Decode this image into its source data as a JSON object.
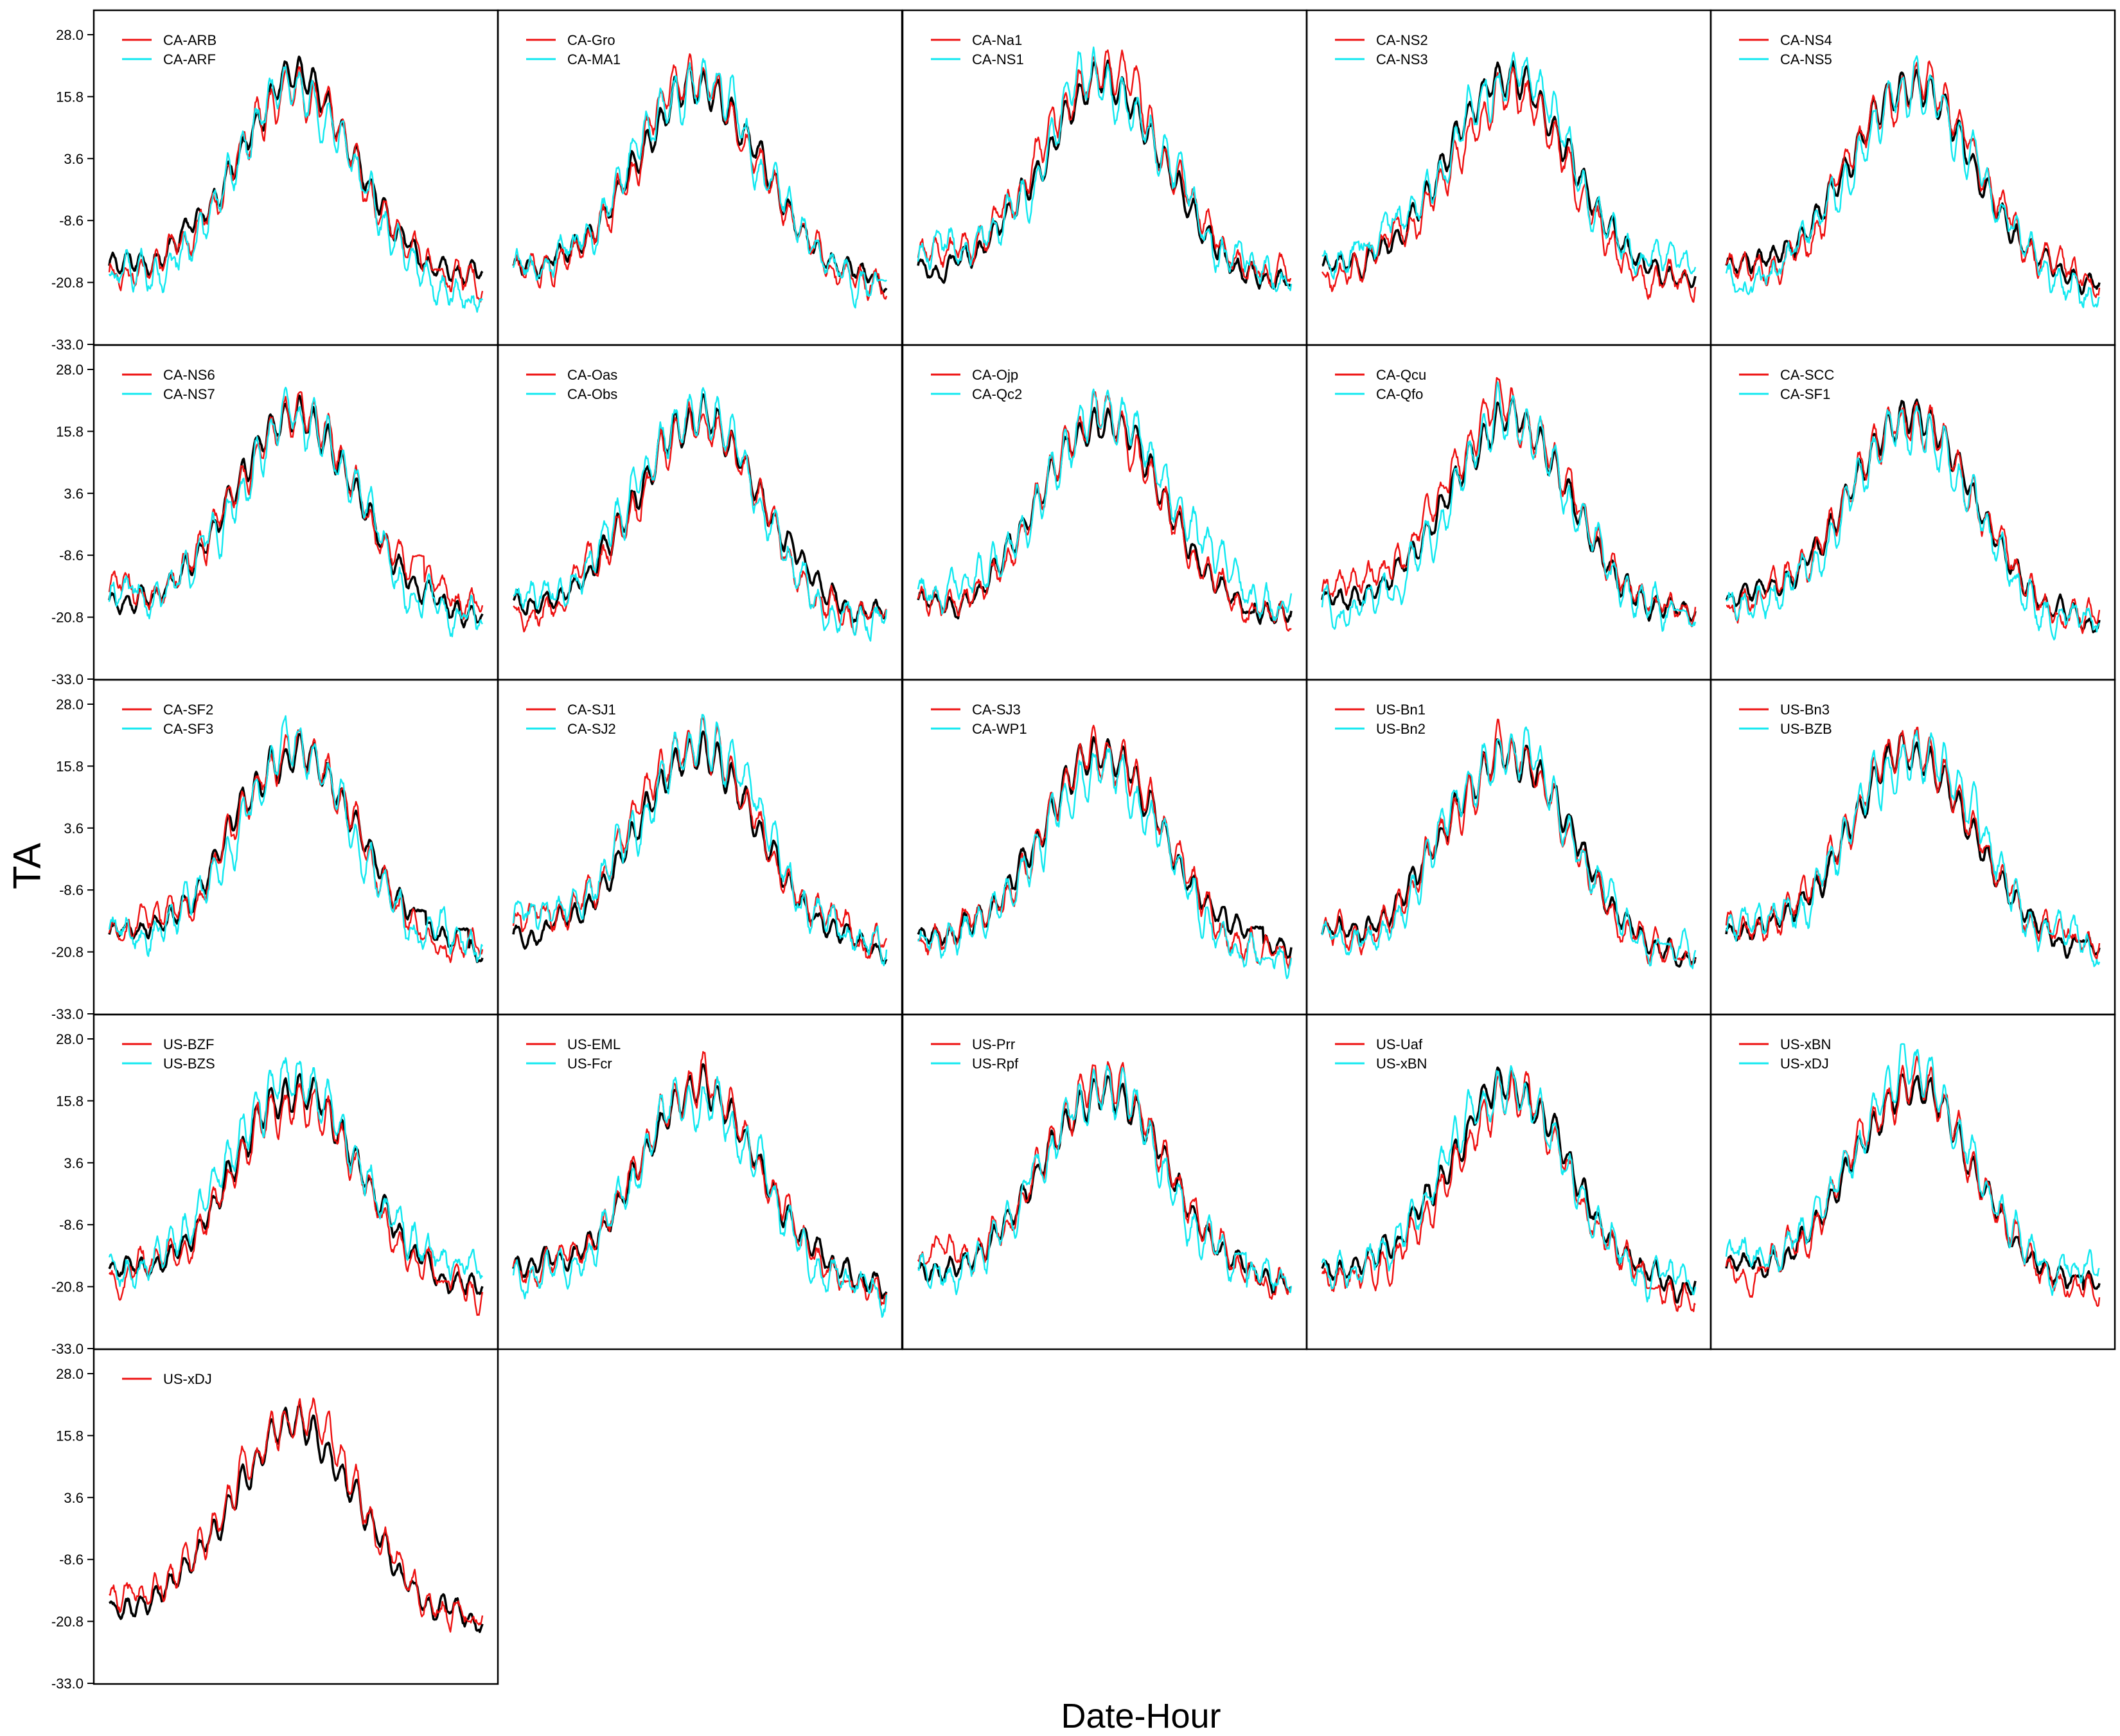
{
  "figure": {
    "xlabel": "Date-Hour",
    "ylabel": "TA"
  },
  "chart_data": {
    "type": "line",
    "grid_rows": 5,
    "grid_cols": 5,
    "y_ticks": [
      28.0,
      15.8,
      3.6,
      -8.6,
      -20.8,
      -33.0
    ],
    "y_tick_labels": [
      "28.0",
      "15.8",
      "3.6",
      "-8.6",
      "-20.8",
      "-33.0"
    ],
    "ylim": [
      -33.0,
      28.0
    ],
    "grid": false,
    "legend_position": "top-left",
    "colors": {
      "reference": "#000000",
      "first": "#ee1111",
      "second": "#11e8f0"
    },
    "panels": [
      {
        "legend": [
          "CA-ARB",
          "CA-ARF"
        ]
      },
      {
        "legend": [
          "CA-Gro",
          "CA-MA1"
        ]
      },
      {
        "legend": [
          "CA-Na1",
          "CA-NS1"
        ]
      },
      {
        "legend": [
          "CA-NS2",
          "CA-NS3"
        ]
      },
      {
        "legend": [
          "CA-NS4",
          "CA-NS5"
        ]
      },
      {
        "legend": [
          "CA-NS6",
          "CA-NS7"
        ]
      },
      {
        "legend": [
          "CA-Oas",
          "CA-Obs"
        ]
      },
      {
        "legend": [
          "CA-Ojp",
          "CA-Qc2"
        ]
      },
      {
        "legend": [
          "CA-Qcu",
          "CA-Qfo"
        ]
      },
      {
        "legend": [
          "CA-SCC",
          "CA-SF1"
        ]
      },
      {
        "legend": [
          "CA-SF2",
          "CA-SF3"
        ]
      },
      {
        "legend": [
          "CA-SJ1",
          "CA-SJ2"
        ]
      },
      {
        "legend": [
          "CA-SJ3",
          "CA-WP1"
        ]
      },
      {
        "legend": [
          "US-Bn1",
          "US-Bn2"
        ]
      },
      {
        "legend": [
          "US-Bn3",
          "US-BZB"
        ]
      },
      {
        "legend": [
          "US-BZF",
          "US-BZS"
        ]
      },
      {
        "legend": [
          "US-EML",
          "US-Fcr"
        ]
      },
      {
        "legend": [
          "US-Prr",
          "US-Rpf"
        ]
      },
      {
        "legend": [
          "US-Uaf",
          "US-xBN"
        ]
      },
      {
        "legend": [
          "US-xBN",
          "US-xDJ"
        ]
      },
      {
        "legend": [
          "US-xDJ"
        ]
      }
    ]
  }
}
